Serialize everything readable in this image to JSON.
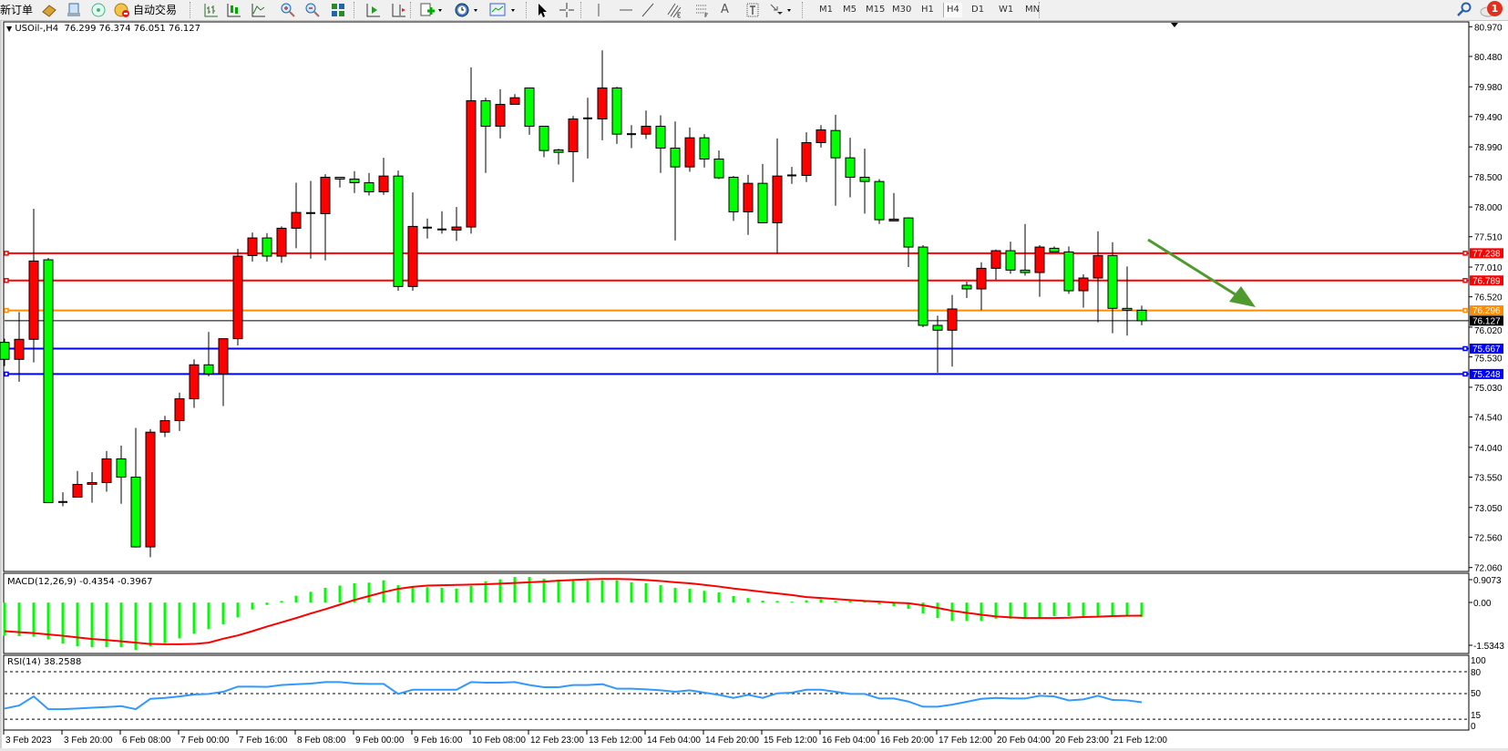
{
  "toolbar": {
    "new_order": "新订单",
    "auto_trading": "自动交易",
    "text_tool": "A",
    "timeframes": [
      "M1",
      "M5",
      "M15",
      "M30",
      "H1",
      "H4",
      "D1",
      "W1",
      "MN"
    ],
    "active_timeframe": "H4",
    "notification_count": "1",
    "icons": [
      "gold-icon",
      "market-watch-icon",
      "signals-icon",
      "auto-trading-icon",
      "bar-chart-icon",
      "candlestick-icon",
      "line-chart-icon",
      "zoom-in-icon",
      "zoom-out-icon",
      "tile-windows-icon",
      "auto-scroll-icon",
      "chart-shift-icon",
      "indicators-icon",
      "periods-icon",
      "templates-icon",
      "cursor-icon",
      "crosshair-icon",
      "vertical-line-icon",
      "horizontal-line-icon",
      "trendline-icon",
      "fibo-channel-icon",
      "fibo-icon",
      "text-icon",
      "text-label-icon",
      "arrows-icon",
      "search-icon",
      "chat-icon"
    ]
  },
  "chart": {
    "symbol_header": "USOil-,H4",
    "ohlc_header": "76.299 76.374 76.051 76.127",
    "macd_label": "MACD(12,26,9) -0.4354 -0.3967",
    "rsi_label": "RSI(14) 38.2588"
  },
  "colors": {
    "bull": "#ff0000",
    "bear": "#00ff00",
    "macd_histogram": "#00ff00",
    "macd_signal": "#ff0000",
    "rsi": "#3399ff",
    "arrow": "#4e9a2f"
  },
  "chart_data": {
    "type": "candlestick",
    "symbol": "USOil-",
    "timeframe": "H4",
    "ylim": [
      72.06,
      80.97
    ],
    "y_ticks": [
      "80.970",
      "80.480",
      "79.980",
      "79.490",
      "78.990",
      "78.500",
      "78.000",
      "77.510",
      "77.010",
      "76.520",
      "76.020",
      "75.530",
      "75.030",
      "74.540",
      "74.040",
      "73.550",
      "73.050",
      "72.560",
      "72.060"
    ],
    "x_tick_labels": [
      "3 Feb 2023",
      "3 Feb 20:00",
      "6 Feb 08:00",
      "7 Feb 00:00",
      "7 Feb 16:00",
      "8 Feb 08:00",
      "9 Feb 00:00",
      "9 Feb 16:00",
      "10 Feb 08:00",
      "12 Feb 23:00",
      "13 Feb 12:00",
      "14 Feb 04:00",
      "14 Feb 20:00",
      "15 Feb 12:00",
      "16 Feb 04:00",
      "16 Feb 20:00",
      "17 Feb 12:00",
      "20 Feb 04:00",
      "20 Feb 23:00",
      "21 Feb 12:00"
    ],
    "ohlc": [
      [
        75.77,
        75.83,
        75.38,
        75.49
      ],
      [
        75.49,
        76.27,
        75.12,
        75.82
      ],
      [
        75.82,
        77.97,
        75.44,
        77.11
      ],
      [
        77.13,
        77.16,
        73.13,
        73.13
      ],
      [
        73.14,
        73.3,
        73.07,
        73.14
      ],
      [
        73.22,
        73.65,
        73.22,
        73.43
      ],
      [
        73.43,
        73.63,
        73.13,
        73.46
      ],
      [
        73.46,
        73.98,
        73.31,
        73.85
      ],
      [
        73.85,
        74.07,
        73.11,
        73.55
      ],
      [
        73.55,
        74.36,
        72.39,
        72.4
      ],
      [
        72.4,
        74.34,
        72.23,
        74.29
      ],
      [
        74.29,
        74.56,
        74.21,
        74.48
      ],
      [
        74.48,
        74.94,
        74.31,
        74.84
      ],
      [
        74.84,
        75.49,
        74.69,
        75.4
      ],
      [
        75.4,
        75.94,
        75.21,
        75.25
      ],
      [
        75.25,
        75.83,
        74.72,
        75.83
      ],
      [
        75.83,
        77.31,
        75.72,
        77.19
      ],
      [
        77.2,
        77.58,
        77.1,
        77.49
      ],
      [
        77.49,
        77.57,
        77.1,
        77.19
      ],
      [
        77.19,
        77.68,
        77.08,
        77.65
      ],
      [
        77.65,
        78.4,
        77.32,
        77.91
      ],
      [
        77.9,
        78.43,
        77.15,
        77.9
      ],
      [
        77.89,
        78.54,
        77.12,
        78.49
      ],
      [
        78.49,
        78.49,
        78.32,
        78.46
      ],
      [
        78.46,
        78.59,
        78.23,
        78.4
      ],
      [
        78.4,
        78.56,
        78.19,
        78.25
      ],
      [
        78.25,
        78.81,
        78.2,
        78.51
      ],
      [
        78.51,
        78.6,
        76.62,
        76.69
      ],
      [
        76.69,
        78.24,
        76.62,
        77.68
      ],
      [
        77.66,
        77.81,
        77.48,
        77.66
      ],
      [
        77.63,
        77.93,
        77.56,
        77.63
      ],
      [
        77.62,
        78.0,
        77.44,
        77.67
      ],
      [
        77.67,
        80.3,
        77.56,
        79.75
      ],
      [
        79.75,
        79.8,
        78.56,
        79.33
      ],
      [
        79.33,
        79.94,
        79.13,
        79.69
      ],
      [
        79.69,
        79.86,
        79.69,
        79.8
      ],
      [
        79.96,
        79.96,
        79.19,
        79.33
      ],
      [
        79.33,
        79.33,
        78.82,
        78.93
      ],
      [
        78.94,
        78.96,
        78.7,
        78.9
      ],
      [
        78.91,
        79.5,
        78.41,
        79.45
      ],
      [
        79.46,
        79.8,
        78.8,
        79.46
      ],
      [
        79.45,
        80.58,
        79.1,
        79.96
      ],
      [
        79.96,
        79.98,
        79.04,
        79.2
      ],
      [
        79.2,
        79.35,
        78.97,
        79.2
      ],
      [
        79.2,
        79.59,
        79.12,
        79.33
      ],
      [
        79.33,
        79.51,
        78.56,
        78.97
      ],
      [
        78.97,
        79.41,
        77.45,
        78.66
      ],
      [
        78.66,
        79.31,
        78.58,
        79.14
      ],
      [
        79.14,
        79.2,
        78.65,
        78.79
      ],
      [
        78.79,
        78.93,
        78.46,
        78.48
      ],
      [
        78.49,
        78.51,
        77.77,
        77.92
      ],
      [
        77.92,
        78.53,
        77.54,
        78.39
      ],
      [
        78.39,
        78.71,
        77.73,
        77.74
      ],
      [
        77.74,
        79.13,
        77.23,
        78.51
      ],
      [
        78.52,
        78.66,
        78.38,
        78.52
      ],
      [
        78.52,
        79.23,
        78.41,
        79.06
      ],
      [
        79.06,
        79.35,
        78.98,
        79.27
      ],
      [
        79.26,
        79.52,
        78.02,
        78.81
      ],
      [
        78.81,
        79.14,
        78.16,
        78.49
      ],
      [
        78.49,
        78.96,
        77.89,
        78.42
      ],
      [
        78.42,
        78.46,
        77.72,
        77.79
      ],
      [
        77.77,
        78.23,
        77.77,
        77.8
      ],
      [
        77.82,
        77.83,
        77.01,
        77.34
      ],
      [
        77.34,
        77.37,
        76.02,
        76.05
      ],
      [
        76.05,
        76.21,
        75.27,
        75.97
      ],
      [
        75.97,
        76.55,
        75.37,
        76.32
      ],
      [
        76.71,
        76.77,
        76.5,
        76.65
      ],
      [
        76.65,
        77.09,
        76.3,
        76.99
      ],
      [
        76.99,
        77.3,
        76.8,
        77.28
      ],
      [
        77.28,
        77.43,
        76.9,
        76.96
      ],
      [
        76.96,
        77.72,
        76.87,
        76.92
      ],
      [
        76.92,
        77.37,
        76.52,
        77.34
      ],
      [
        77.32,
        77.35,
        77.26,
        77.26
      ],
      [
        77.26,
        77.35,
        76.57,
        76.62
      ],
      [
        76.62,
        76.89,
        76.34,
        76.83
      ],
      [
        76.83,
        77.6,
        76.1,
        77.2
      ],
      [
        77.2,
        77.42,
        75.92,
        76.33
      ],
      [
        76.33,
        77.02,
        75.88,
        76.3
      ],
      [
        76.299,
        76.374,
        76.051,
        76.127
      ]
    ],
    "current_price": "76.127",
    "levels": [
      {
        "price": "77.238",
        "color": "#ff0000"
      },
      {
        "price": "76.789",
        "color": "#ff0000"
      },
      {
        "price": "76.296",
        "color": "#ff8c00"
      },
      {
        "price": "75.667",
        "color": "#0000ff"
      },
      {
        "price": "75.248",
        "color": "#0000ff"
      }
    ],
    "macd": {
      "ylim": [
        -1.5343,
        0.9073
      ],
      "y_ticks": [
        "0.9073",
        "0.00",
        "-1.5343"
      ],
      "histogram": [
        -1.01,
        -1.02,
        -1.04,
        -1.12,
        -1.25,
        -1.33,
        -1.36,
        -1.36,
        -1.36,
        -1.44,
        -1.33,
        -1.23,
        -1.09,
        -0.95,
        -0.81,
        -0.66,
        -0.45,
        -0.21,
        -0.07,
        0.05,
        0.21,
        0.33,
        0.45,
        0.52,
        0.59,
        0.61,
        0.68,
        0.53,
        0.47,
        0.47,
        0.45,
        0.43,
        0.51,
        0.65,
        0.71,
        0.78,
        0.78,
        0.73,
        0.7,
        0.68,
        0.68,
        0.68,
        0.68,
        0.62,
        0.59,
        0.53,
        0.45,
        0.42,
        0.36,
        0.31,
        0.2,
        0.14,
        0.06,
        0.05,
        0.03,
        0.07,
        0.1,
        0.05,
        0.05,
        0.03,
        -0.05,
        -0.11,
        -0.19,
        -0.33,
        -0.47,
        -0.56,
        -0.56,
        -0.56,
        -0.49,
        -0.49,
        -0.46,
        -0.46,
        -0.41,
        -0.41,
        -0.41,
        -0.41,
        -0.41,
        -0.41,
        -0.4354
      ],
      "signal": [
        -0.87,
        -0.9,
        -0.93,
        -0.97,
        -1.01,
        -1.06,
        -1.11,
        -1.14,
        -1.18,
        -1.22,
        -1.26,
        -1.27,
        -1.27,
        -1.26,
        -1.22,
        -1.1,
        -1.0,
        -0.87,
        -0.73,
        -0.6,
        -0.47,
        -0.33,
        -0.2,
        -0.06,
        0.08,
        0.2,
        0.32,
        0.42,
        0.48,
        0.52,
        0.53,
        0.54,
        0.55,
        0.56,
        0.58,
        0.6,
        0.62,
        0.64,
        0.67,
        0.69,
        0.71,
        0.72,
        0.72,
        0.71,
        0.69,
        0.66,
        0.62,
        0.59,
        0.54,
        0.49,
        0.43,
        0.38,
        0.33,
        0.28,
        0.23,
        0.17,
        0.14,
        0.11,
        0.08,
        0.05,
        0.03,
        0.0,
        -0.02,
        -0.08,
        -0.16,
        -0.25,
        -0.31,
        -0.37,
        -0.42,
        -0.45,
        -0.47,
        -0.47,
        -0.47,
        -0.46,
        -0.44,
        -0.43,
        -0.41,
        -0.4,
        -0.3967
      ]
    },
    "rsi": {
      "period": 14,
      "ylim": [
        0,
        100
      ],
      "levels": [
        80,
        50,
        15
      ],
      "y_ticks": [
        "100",
        "80",
        "50",
        "15",
        "0"
      ],
      "values": [
        29.6,
        33.8,
        46.2,
        28.8,
        28.8,
        29.6,
        30.8,
        31.7,
        32.9,
        28.8,
        42.9,
        44.2,
        46.2,
        48.8,
        49.6,
        52.5,
        59.6,
        59.6,
        59.2,
        61.7,
        62.9,
        63.8,
        65.8,
        65.8,
        63.8,
        63.3,
        63.3,
        49.6,
        55.4,
        55.4,
        55.4,
        55.4,
        65.8,
        65.0,
        65.0,
        65.8,
        61.7,
        58.8,
        58.8,
        61.7,
        61.7,
        62.9,
        56.7,
        56.7,
        55.8,
        54.6,
        52.5,
        54.6,
        51.3,
        48.3,
        44.2,
        48.3,
        44.2,
        50.4,
        51.3,
        55.4,
        55.4,
        52.5,
        49.6,
        49.6,
        43.3,
        43.3,
        39.2,
        32.1,
        32.1,
        35.0,
        38.8,
        42.9,
        44.2,
        43.3,
        43.3,
        47.1,
        46.2,
        40.8,
        42.1,
        47.1,
        41.3,
        40.8,
        38.2588
      ]
    },
    "annotation": {
      "type": "arrow",
      "direction": "down-right",
      "color": "#4e9a2f"
    }
  }
}
